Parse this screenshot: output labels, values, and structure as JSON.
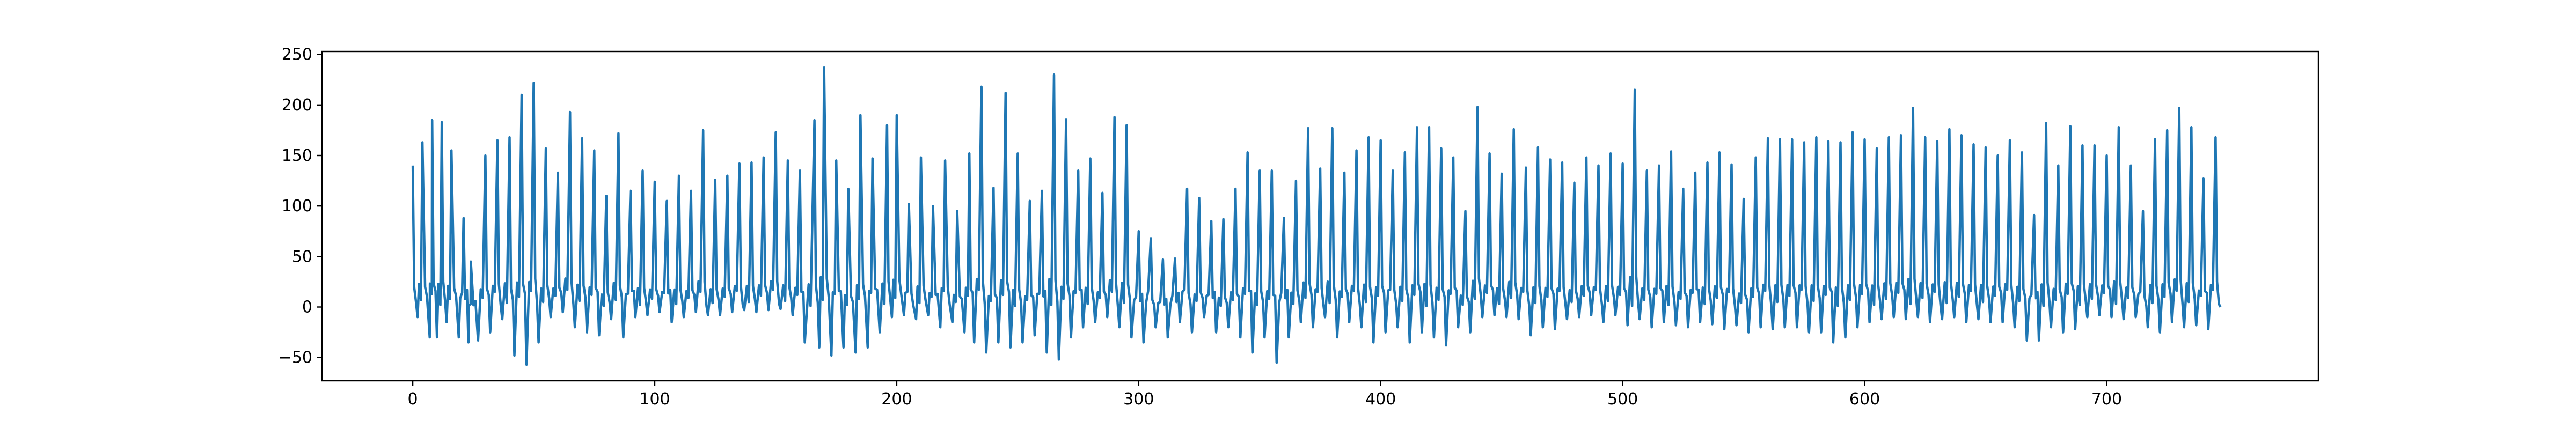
{
  "chart_data": {
    "type": "line",
    "title": "",
    "xlabel": "",
    "ylabel": "",
    "xlim": [
      -37.5,
      787.5
    ],
    "ylim": [
      -73,
      253
    ],
    "xticks": [
      0,
      100,
      200,
      300,
      400,
      500,
      600,
      700
    ],
    "yticks": [
      -50,
      0,
      50,
      100,
      150,
      200,
      250
    ],
    "grid": false,
    "legend": "none",
    "series": [
      {
        "color": "#1f77b4",
        "n_points": 750,
        "peaks": [
          [
            0,
            140
          ],
          [
            4,
            163
          ],
          [
            8,
            185
          ],
          [
            12,
            183
          ],
          [
            16,
            155
          ],
          [
            21,
            88
          ],
          [
            24,
            45
          ],
          [
            30,
            150
          ],
          [
            35,
            165
          ],
          [
            40,
            168
          ],
          [
            45,
            210
          ],
          [
            50,
            222
          ],
          [
            55,
            157
          ],
          [
            60,
            133
          ],
          [
            65,
            193
          ],
          [
            70,
            167
          ],
          [
            75,
            155
          ],
          [
            80,
            110
          ],
          [
            85,
            172
          ],
          [
            90,
            115
          ],
          [
            95,
            135
          ],
          [
            100,
            124
          ],
          [
            105,
            105
          ],
          [
            110,
            130
          ],
          [
            115,
            115
          ],
          [
            120,
            175
          ],
          [
            125,
            126
          ],
          [
            130,
            130
          ],
          [
            135,
            142
          ],
          [
            140,
            143
          ],
          [
            145,
            148
          ],
          [
            150,
            173
          ],
          [
            155,
            145
          ],
          [
            160,
            135
          ],
          [
            166,
            185
          ],
          [
            170,
            237
          ],
          [
            175,
            145
          ],
          [
            180,
            117
          ],
          [
            185,
            190
          ],
          [
            190,
            147
          ],
          [
            196,
            180
          ],
          [
            200,
            190
          ],
          [
            205,
            102
          ],
          [
            210,
            148
          ],
          [
            215,
            100
          ],
          [
            220,
            145
          ],
          [
            225,
            95
          ],
          [
            230,
            152
          ],
          [
            235,
            218
          ],
          [
            240,
            118
          ],
          [
            245,
            212
          ],
          [
            250,
            152
          ],
          [
            255,
            105
          ],
          [
            260,
            115
          ],
          [
            265,
            230
          ],
          [
            270,
            186
          ],
          [
            275,
            135
          ],
          [
            280,
            147
          ],
          [
            285,
            113
          ],
          [
            290,
            188
          ],
          [
            295,
            180
          ],
          [
            300,
            75
          ],
          [
            305,
            68
          ],
          [
            310,
            47
          ],
          [
            315,
            48
          ],
          [
            320,
            117
          ],
          [
            325,
            108
          ],
          [
            330,
            85
          ],
          [
            335,
            87
          ],
          [
            340,
            117
          ],
          [
            345,
            153
          ],
          [
            350,
            135
          ],
          [
            355,
            135
          ],
          [
            360,
            88
          ],
          [
            365,
            125
          ],
          [
            370,
            177
          ],
          [
            375,
            137
          ],
          [
            380,
            177
          ],
          [
            385,
            133
          ],
          [
            390,
            155
          ],
          [
            395,
            168
          ],
          [
            400,
            165
          ],
          [
            405,
            135
          ],
          [
            410,
            153
          ],
          [
            415,
            178
          ],
          [
            420,
            178
          ],
          [
            425,
            157
          ],
          [
            430,
            148
          ],
          [
            435,
            95
          ],
          [
            440,
            198
          ],
          [
            445,
            152
          ],
          [
            450,
            132
          ],
          [
            455,
            176
          ],
          [
            460,
            138
          ],
          [
            465,
            158
          ],
          [
            470,
            146
          ],
          [
            475,
            143
          ],
          [
            480,
            123
          ],
          [
            485,
            148
          ],
          [
            490,
            140
          ],
          [
            495,
            152
          ],
          [
            500,
            142
          ],
          [
            505,
            215
          ],
          [
            510,
            135
          ],
          [
            515,
            140
          ],
          [
            520,
            154
          ],
          [
            525,
            117
          ],
          [
            530,
            133
          ],
          [
            535,
            143
          ],
          [
            540,
            153
          ],
          [
            545,
            141
          ],
          [
            550,
            107
          ],
          [
            555,
            148
          ],
          [
            560,
            167
          ],
          [
            565,
            166
          ],
          [
            570,
            166
          ],
          [
            575,
            163
          ],
          [
            580,
            168
          ],
          [
            585,
            164
          ],
          [
            590,
            163
          ],
          [
            595,
            173
          ],
          [
            600,
            166
          ],
          [
            605,
            157
          ],
          [
            610,
            168
          ],
          [
            615,
            170
          ],
          [
            620,
            197
          ],
          [
            625,
            168
          ],
          [
            630,
            164
          ],
          [
            635,
            176
          ],
          [
            640,
            170
          ],
          [
            645,
            161
          ],
          [
            650,
            158
          ],
          [
            655,
            150
          ],
          [
            660,
            165
          ],
          [
            665,
            153
          ],
          [
            670,
            91
          ],
          [
            675,
            182
          ],
          [
            680,
            140
          ],
          [
            685,
            179
          ],
          [
            690,
            160
          ],
          [
            695,
            160
          ],
          [
            700,
            150
          ],
          [
            705,
            178
          ],
          [
            710,
            140
          ],
          [
            715,
            95
          ],
          [
            720,
            166
          ],
          [
            725,
            175
          ],
          [
            730,
            197
          ],
          [
            735,
            178
          ],
          [
            740,
            127
          ],
          [
            745,
            168
          ]
        ],
        "troughs": [
          [
            2,
            -10
          ],
          [
            7,
            -30
          ],
          [
            10,
            -30
          ],
          [
            14,
            -15
          ],
          [
            19,
            -30
          ],
          [
            23,
            -35
          ],
          [
            27,
            -33
          ],
          [
            32,
            -25
          ],
          [
            37,
            -12
          ],
          [
            42,
            -48
          ],
          [
            47,
            -57
          ],
          [
            52,
            -35
          ],
          [
            57,
            -10
          ],
          [
            62,
            -5
          ],
          [
            67,
            -20
          ],
          [
            72,
            -25
          ],
          [
            77,
            -28
          ],
          [
            82,
            -12
          ],
          [
            87,
            -30
          ],
          [
            92,
            -10
          ],
          [
            97,
            -8
          ],
          [
            102,
            -5
          ],
          [
            107,
            -15
          ],
          [
            112,
            -10
          ],
          [
            117,
            -5
          ],
          [
            122,
            -8
          ],
          [
            127,
            -8
          ],
          [
            132,
            -5
          ],
          [
            137,
            -3
          ],
          [
            142,
            -5
          ],
          [
            147,
            -3
          ],
          [
            152,
            -2
          ],
          [
            157,
            -8
          ],
          [
            162,
            -35
          ],
          [
            168,
            -40
          ],
          [
            173,
            -48
          ],
          [
            178,
            -40
          ],
          [
            183,
            -45
          ],
          [
            188,
            -40
          ],
          [
            193,
            -25
          ],
          [
            198,
            -10
          ],
          [
            203,
            -8
          ],
          [
            208,
            -12
          ],
          [
            213,
            -8
          ],
          [
            218,
            -20
          ],
          [
            223,
            -15
          ],
          [
            228,
            -25
          ],
          [
            232,
            -35
          ],
          [
            237,
            -45
          ],
          [
            242,
            -35
          ],
          [
            247,
            -40
          ],
          [
            252,
            -35
          ],
          [
            257,
            -28
          ],
          [
            262,
            -45
          ],
          [
            267,
            -52
          ],
          [
            272,
            -30
          ],
          [
            277,
            -20
          ],
          [
            282,
            -15
          ],
          [
            287,
            -10
          ],
          [
            292,
            -20
          ],
          [
            297,
            -30
          ],
          [
            302,
            -35
          ],
          [
            307,
            -20
          ],
          [
            312,
            -30
          ],
          [
            317,
            -15
          ],
          [
            322,
            -25
          ],
          [
            327,
            -10
          ],
          [
            332,
            -25
          ],
          [
            337,
            -20
          ],
          [
            342,
            -30
          ],
          [
            347,
            -45
          ],
          [
            352,
            -30
          ],
          [
            357,
            -55
          ],
          [
            362,
            -30
          ],
          [
            367,
            -15
          ],
          [
            372,
            -20
          ],
          [
            377,
            -10
          ],
          [
            382,
            -30
          ],
          [
            387,
            -15
          ],
          [
            392,
            -20
          ],
          [
            397,
            -35
          ],
          [
            402,
            -25
          ],
          [
            407,
            -20
          ],
          [
            412,
            -35
          ],
          [
            417,
            -25
          ],
          [
            422,
            -30
          ],
          [
            427,
            -38
          ],
          [
            432,
            -20
          ],
          [
            437,
            -25
          ],
          [
            442,
            -10
          ],
          [
            447,
            -8
          ],
          [
            452,
            -10
          ],
          [
            457,
            -12
          ],
          [
            462,
            -28
          ],
          [
            467,
            -20
          ],
          [
            472,
            -22
          ],
          [
            477,
            -12
          ],
          [
            482,
            -10
          ],
          [
            487,
            -8
          ],
          [
            492,
            -15
          ],
          [
            497,
            -8
          ],
          [
            502,
            -18
          ],
          [
            507,
            -12
          ],
          [
            512,
            -20
          ],
          [
            517,
            -15
          ],
          [
            522,
            -18
          ],
          [
            527,
            -20
          ],
          [
            532,
            -15
          ],
          [
            537,
            -17
          ],
          [
            542,
            -22
          ],
          [
            547,
            -18
          ],
          [
            552,
            -25
          ],
          [
            557,
            -20
          ],
          [
            562,
            -22
          ],
          [
            567,
            -20
          ],
          [
            572,
            -20
          ],
          [
            577,
            -25
          ],
          [
            582,
            -25
          ],
          [
            587,
            -35
          ],
          [
            592,
            -30
          ],
          [
            597,
            -20
          ],
          [
            602,
            -15
          ],
          [
            607,
            -12
          ],
          [
            612,
            -10
          ],
          [
            617,
            -12
          ],
          [
            622,
            -10
          ],
          [
            627,
            -15
          ],
          [
            632,
            -12
          ],
          [
            637,
            -10
          ],
          [
            642,
            -15
          ],
          [
            647,
            -12
          ],
          [
            652,
            -15
          ],
          [
            657,
            -15
          ],
          [
            662,
            -20
          ],
          [
            667,
            -33
          ],
          [
            672,
            -33
          ],
          [
            677,
            -20
          ],
          [
            682,
            -25
          ],
          [
            687,
            -22
          ],
          [
            692,
            -10
          ],
          [
            697,
            -8
          ],
          [
            702,
            -10
          ],
          [
            707,
            -12
          ],
          [
            712,
            -10
          ],
          [
            717,
            -20
          ],
          [
            722,
            -25
          ],
          [
            727,
            -15
          ],
          [
            732,
            -20
          ],
          [
            737,
            -18
          ],
          [
            742,
            -22
          ],
          [
            747,
            0
          ]
        ]
      }
    ]
  }
}
